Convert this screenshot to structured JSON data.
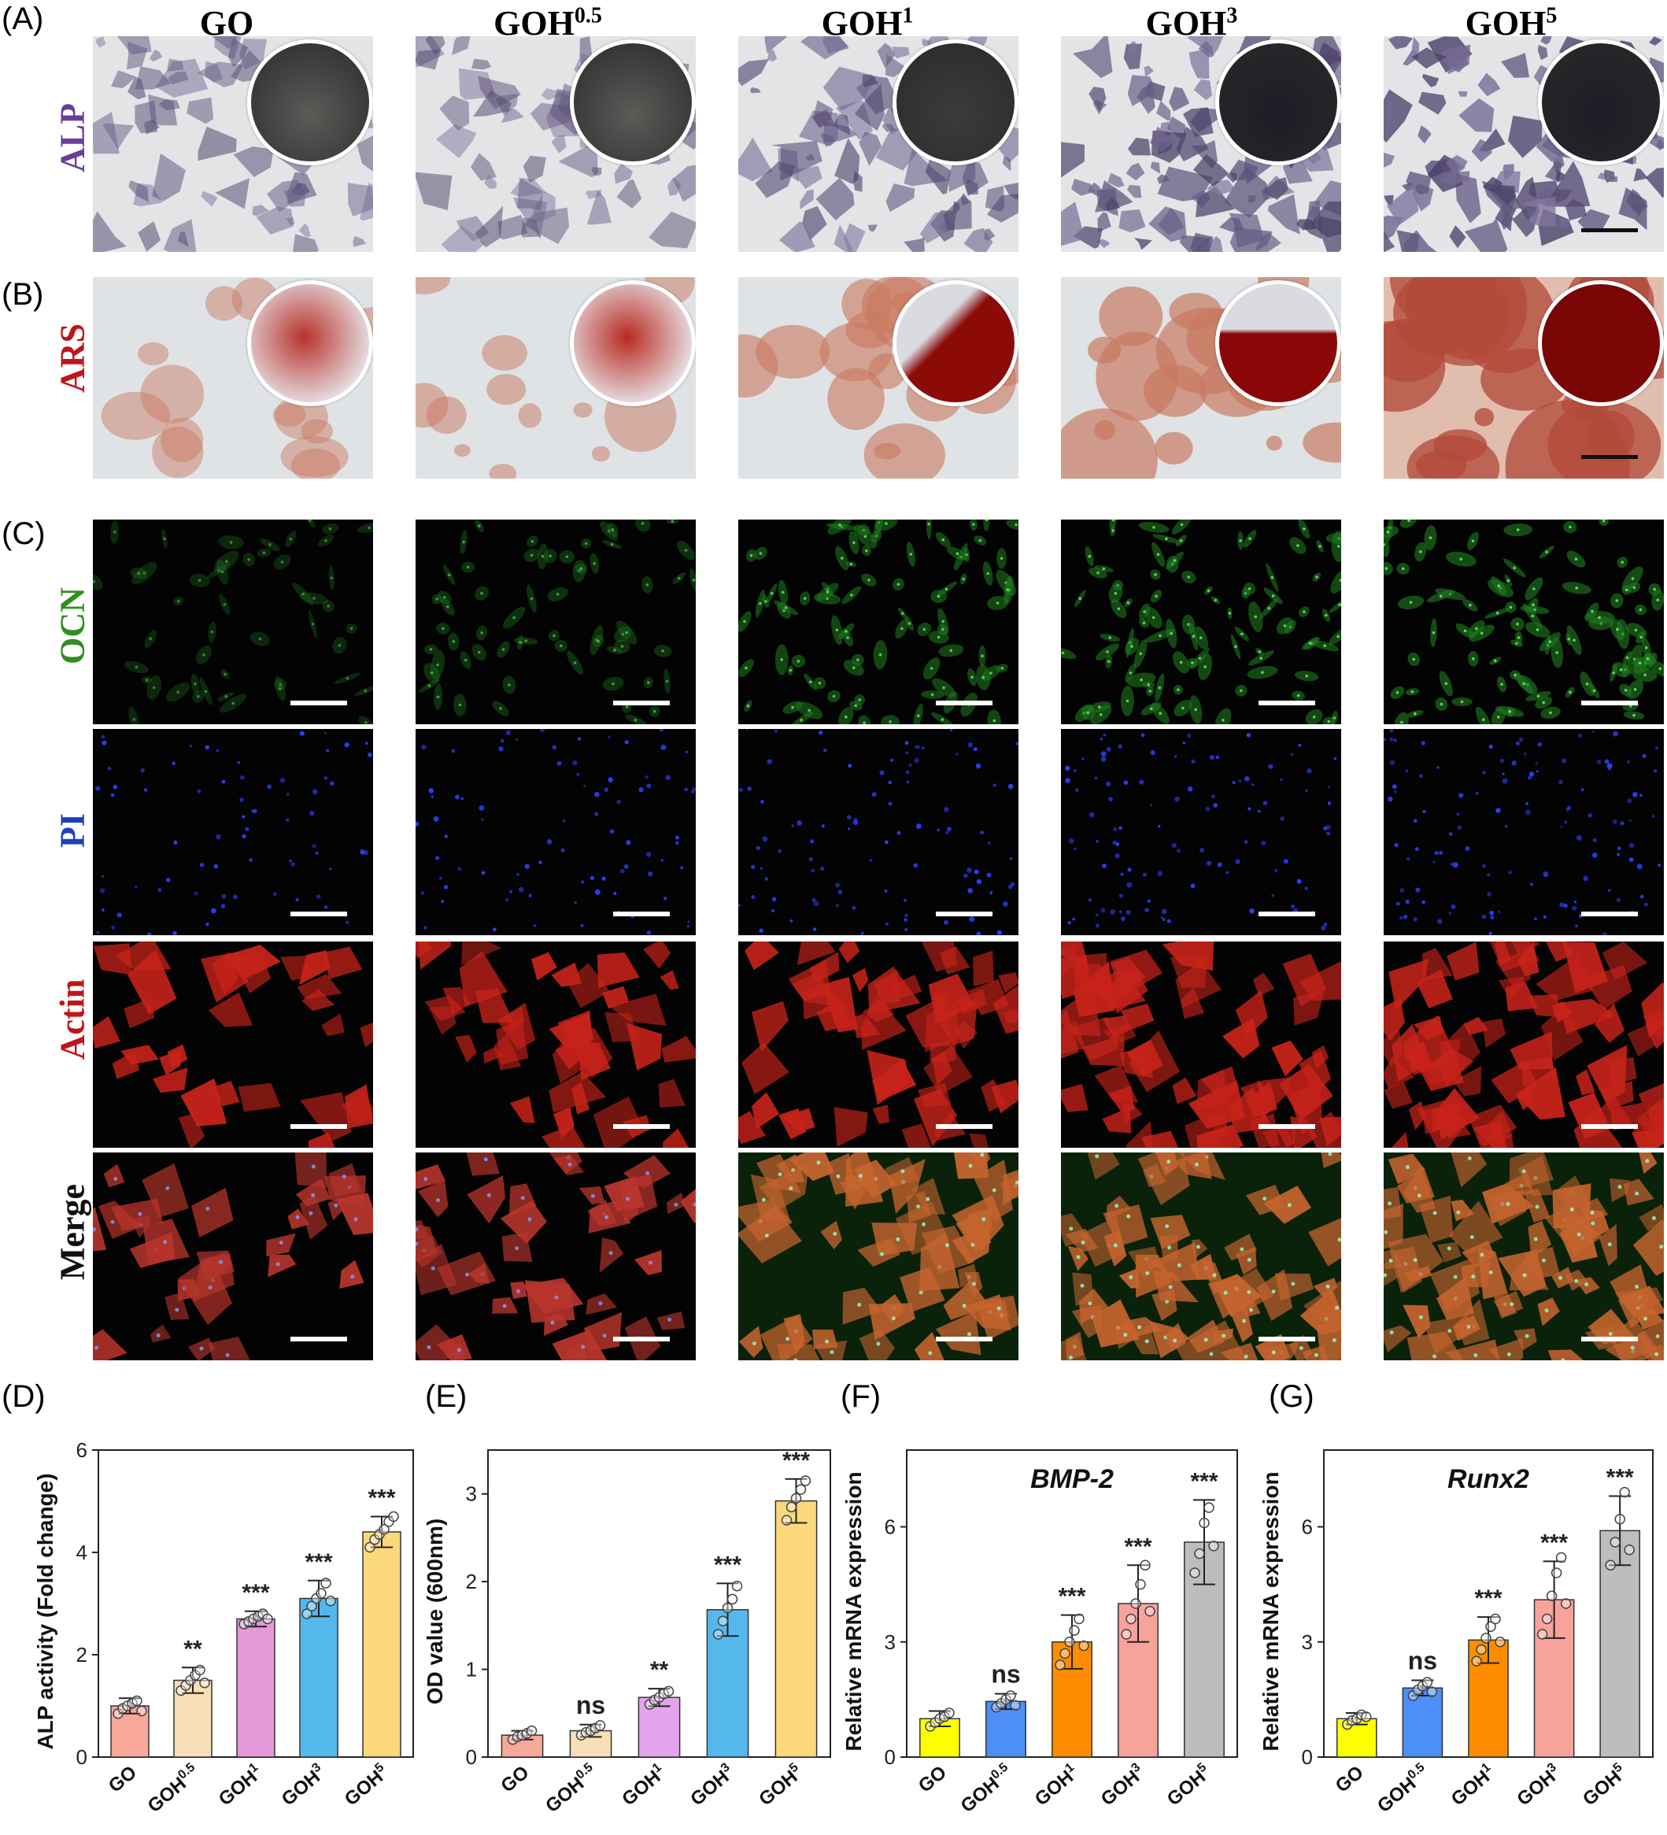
{
  "figure": {
    "panel_letters": [
      "(A)",
      "(B)",
      "(C)",
      "(D)",
      "(E)",
      "(F)",
      "(G)"
    ],
    "columns": [
      {
        "name": "GO",
        "sup": ""
      },
      {
        "name": "GOH",
        "sup": "0.5"
      },
      {
        "name": "GOH",
        "sup": "1"
      },
      {
        "name": "GOH",
        "sup": "3"
      },
      {
        "name": "GOH",
        "sup": "5"
      }
    ],
    "rows": [
      {
        "label": "ALP",
        "color": "#6a3d9a"
      },
      {
        "label": "ARS",
        "color": "#c0151b"
      },
      {
        "label": "OCN",
        "color": "#2f8f1f"
      },
      {
        "label": "PI",
        "color": "#1f3fbf"
      },
      {
        "label": "Actin",
        "color": "#c0151b"
      },
      {
        "label": "Merge",
        "color": "#111111"
      }
    ],
    "alp_stain_level": [
      0.3,
      0.25,
      0.45,
      0.7,
      0.8
    ],
    "ars_stain_level": [
      0.25,
      0.3,
      0.5,
      0.65,
      0.85
    ],
    "ocn_intensity": [
      0.2,
      0.35,
      0.65,
      0.7,
      0.75
    ]
  },
  "chart_data": [
    {
      "panel": "(D)",
      "type": "bar",
      "title": "",
      "xlabel": "",
      "ylabel": "ALP activity (Fold change)",
      "ylim": [
        0,
        6
      ],
      "yticks": [
        0,
        2,
        4,
        6
      ],
      "categories": [
        "GO",
        "GOH0.5",
        "GOH1",
        "GOH3",
        "GOH5"
      ],
      "category_labels": [
        {
          "base": "GO",
          "sup": ""
        },
        {
          "base": "GOH",
          "sup": "0.5"
        },
        {
          "base": "GOH",
          "sup": "1"
        },
        {
          "base": "GOH",
          "sup": "3"
        },
        {
          "base": "GOH",
          "sup": "5"
        }
      ],
      "values": [
        1.0,
        1.5,
        2.7,
        3.1,
        4.4
      ],
      "errors": [
        0.15,
        0.25,
        0.15,
        0.35,
        0.3
      ],
      "points": [
        [
          0.85,
          0.95,
          1.0,
          1.05,
          1.1,
          0.9
        ],
        [
          1.3,
          1.4,
          1.5,
          1.6,
          1.7,
          1.45
        ],
        [
          2.6,
          2.65,
          2.7,
          2.75,
          2.8,
          2.7
        ],
        [
          2.8,
          2.95,
          3.1,
          3.2,
          3.4,
          3.05
        ],
        [
          4.1,
          4.25,
          4.35,
          4.45,
          4.6,
          4.7
        ]
      ],
      "significance": [
        "",
        "**",
        "***",
        "***",
        "***"
      ],
      "colors": [
        "#f7a899",
        "#f6deb6",
        "#e49ad6",
        "#55b8ec",
        "#fbd97a"
      ]
    },
    {
      "panel": "(E)",
      "type": "bar",
      "title": "",
      "xlabel": "",
      "ylabel": "OD value (600nm)",
      "ylim": [
        0,
        3.5
      ],
      "yticks": [
        0,
        1,
        2,
        3
      ],
      "categories": [
        "GO",
        "GOH0.5",
        "GOH1",
        "GOH3",
        "GOH5"
      ],
      "category_labels": [
        {
          "base": "GO",
          "sup": ""
        },
        {
          "base": "GOH",
          "sup": "0.5"
        },
        {
          "base": "GOH",
          "sup": "1"
        },
        {
          "base": "GOH",
          "sup": "3"
        },
        {
          "base": "GOH",
          "sup": "5"
        }
      ],
      "values": [
        0.25,
        0.3,
        0.68,
        1.68,
        2.92
      ],
      "errors": [
        0.05,
        0.07,
        0.1,
        0.3,
        0.25
      ],
      "points": [
        [
          0.2,
          0.23,
          0.25,
          0.27,
          0.3
        ],
        [
          0.25,
          0.28,
          0.3,
          0.33,
          0.36
        ],
        [
          0.6,
          0.65,
          0.68,
          0.72,
          0.75
        ],
        [
          1.4,
          1.55,
          1.7,
          1.8,
          1.95
        ],
        [
          2.7,
          2.85,
          2.95,
          3.05,
          3.15
        ]
      ],
      "significance": [
        "",
        "ns",
        "**",
        "***",
        "***"
      ],
      "colors": [
        "#f7a899",
        "#f6deb6",
        "#e3a4ec",
        "#55b8ec",
        "#fbd97a"
      ]
    },
    {
      "panel": "(F)",
      "type": "bar",
      "title": "BMP-2",
      "xlabel": "",
      "ylabel": "Relative mRNA expression",
      "ylim": [
        0,
        8
      ],
      "yticks": [
        0,
        3,
        6
      ],
      "categories": [
        "GO",
        "GOH0.5",
        "GOH1",
        "GOH3",
        "GOH5"
      ],
      "category_labels": [
        {
          "base": "GO",
          "sup": ""
        },
        {
          "base": "GOH",
          "sup": "0.5"
        },
        {
          "base": "GOH",
          "sup": "1"
        },
        {
          "base": "GOH",
          "sup": "3"
        },
        {
          "base": "GOH",
          "sup": "5"
        }
      ],
      "values": [
        1.0,
        1.45,
        3.0,
        4.0,
        5.6
      ],
      "errors": [
        0.2,
        0.2,
        0.7,
        1.0,
        1.1
      ],
      "points": [
        [
          0.8,
          0.9,
          1.0,
          1.05,
          1.15
        ],
        [
          1.3,
          1.4,
          1.5,
          1.6,
          1.35
        ],
        [
          2.4,
          2.7,
          3.0,
          3.3,
          3.6,
          2.9
        ],
        [
          3.2,
          3.6,
          4.0,
          4.5,
          5.0,
          3.8
        ],
        [
          4.8,
          5.3,
          6.1,
          6.5,
          5.5
        ]
      ],
      "significance": [
        "",
        "ns",
        "***",
        "***",
        "***"
      ],
      "colors": [
        "#ffff00",
        "#4d8ef7",
        "#ff8c00",
        "#f7a29b",
        "#bdbdbd"
      ]
    },
    {
      "panel": "(G)",
      "type": "bar",
      "title": "Runx2",
      "xlabel": "",
      "ylabel": "Relative mRNA expression",
      "ylim": [
        0,
        8
      ],
      "yticks": [
        0,
        3,
        6
      ],
      "categories": [
        "GO",
        "GOH0.5",
        "GOH1",
        "GOH3",
        "GOH5"
      ],
      "category_labels": [
        {
          "base": "GO",
          "sup": ""
        },
        {
          "base": "GOH",
          "sup": "0.5"
        },
        {
          "base": "GOH",
          "sup": "1"
        },
        {
          "base": "GOH",
          "sup": "3"
        },
        {
          "base": "GOH",
          "sup": "5"
        }
      ],
      "values": [
        1.0,
        1.8,
        3.05,
        4.1,
        5.9
      ],
      "errors": [
        0.15,
        0.2,
        0.6,
        1.0,
        0.9
      ],
      "points": [
        [
          0.85,
          0.95,
          1.0,
          1.1,
          1.05
        ],
        [
          1.6,
          1.75,
          1.85,
          1.95,
          1.7
        ],
        [
          2.5,
          2.8,
          3.1,
          3.4,
          3.6,
          3.0
        ],
        [
          3.2,
          3.6,
          4.2,
          4.8,
          5.2,
          4.0
        ],
        [
          5.0,
          5.6,
          6.2,
          6.9,
          5.4
        ]
      ],
      "significance": [
        "",
        "ns",
        "***",
        "***",
        "***"
      ],
      "colors": [
        "#ffff00",
        "#4d8ef7",
        "#ff8c00",
        "#f7a29b",
        "#bdbdbd"
      ]
    }
  ]
}
